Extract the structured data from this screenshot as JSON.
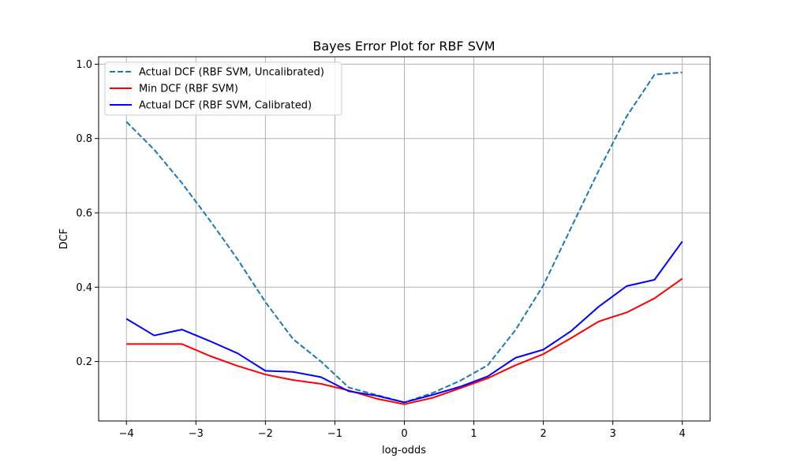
{
  "chart_data": {
    "type": "line",
    "title": "Bayes Error Plot for RBF SVM",
    "xlabel": "log-odds",
    "ylabel": "DCF",
    "xlim": [
      -4.4,
      4.4
    ],
    "ylim": [
      0.04,
      1.02
    ],
    "xticks": [
      -4,
      -3,
      -2,
      -1,
      0,
      1,
      2,
      3,
      4
    ],
    "xtick_labels": [
      "−4",
      "−3",
      "−2",
      "−1",
      "0",
      "1",
      "2",
      "3",
      "4"
    ],
    "yticks": [
      0.2,
      0.4,
      0.6,
      0.8,
      1.0
    ],
    "ytick_labels": [
      "0.2",
      "0.4",
      "0.6",
      "0.8",
      "1.0"
    ],
    "grid": true,
    "legend_position": "top-left",
    "x": [
      -4.0,
      -3.6,
      -3.2,
      -2.8,
      -2.4,
      -2.0,
      -1.6,
      -1.2,
      -0.8,
      -0.4,
      0.0,
      0.4,
      0.8,
      1.2,
      1.6,
      2.0,
      2.4,
      2.8,
      3.2,
      3.6,
      4.0
    ],
    "series": [
      {
        "name": "Actual DCF (RBF SVM, Uncalibrated)",
        "color": "#1f77b4",
        "style": "dashed",
        "values": [
          0.845,
          0.77,
          0.68,
          0.58,
          0.475,
          0.36,
          0.26,
          0.2,
          0.13,
          0.11,
          0.09,
          0.115,
          0.148,
          0.19,
          0.285,
          0.405,
          0.56,
          0.715,
          0.86,
          0.972,
          0.978
        ]
      },
      {
        "name": "Min DCF (RBF SVM)",
        "color": "#ff0000",
        "style": "solid",
        "values": [
          0.247,
          0.247,
          0.247,
          0.215,
          0.188,
          0.165,
          0.15,
          0.14,
          0.122,
          0.1,
          0.085,
          0.102,
          0.128,
          0.155,
          0.19,
          0.22,
          0.263,
          0.308,
          0.332,
          0.37,
          0.423
        ]
      },
      {
        "name": "Actual DCF (RBF SVM, Calibrated)",
        "color": "#0000ff",
        "style": "solid",
        "values": [
          0.315,
          0.27,
          0.286,
          0.255,
          0.222,
          0.175,
          0.172,
          0.158,
          0.12,
          0.108,
          0.09,
          0.11,
          0.132,
          0.16,
          0.21,
          0.232,
          0.282,
          0.348,
          0.403,
          0.42,
          0.523
        ]
      }
    ]
  }
}
